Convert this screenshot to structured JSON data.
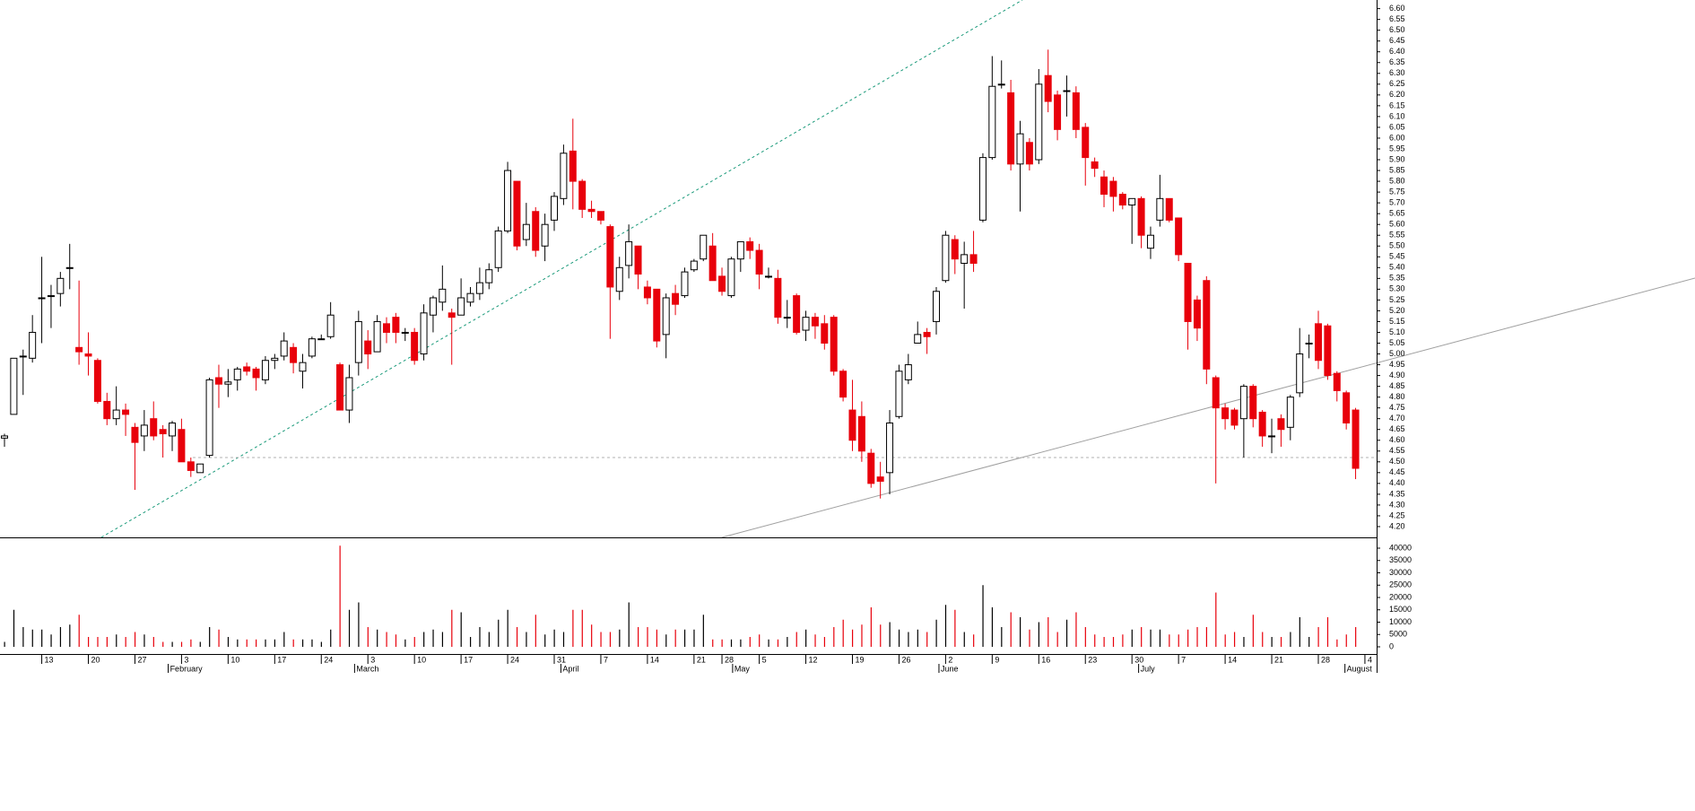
{
  "chart_data": {
    "type": "candlestick",
    "categories": [
      null,
      null,
      null,
      null,
      "13",
      null,
      null,
      null,
      null,
      "20",
      null,
      null,
      null,
      null,
      "27",
      null,
      null,
      null,
      null,
      "3",
      null,
      null,
      null,
      null,
      "10",
      null,
      null,
      null,
      null,
      "17",
      null,
      null,
      null,
      null,
      "24",
      null,
      null,
      null,
      null,
      "3",
      null,
      null,
      null,
      null,
      "10",
      null,
      null,
      null,
      null,
      "17",
      null,
      null,
      null,
      null,
      "24",
      null,
      null,
      null,
      null,
      "31",
      null,
      null,
      null,
      null,
      "7",
      null,
      null,
      null,
      null,
      "14",
      null,
      null,
      null,
      null,
      "21",
      null,
      null,
      "28",
      null,
      null,
      null,
      "5",
      null,
      null,
      null,
      null,
      "12",
      null,
      null,
      null,
      null,
      "19",
      null,
      null,
      null,
      null,
      "26",
      null,
      null,
      null,
      null,
      "2",
      null,
      null,
      null,
      null,
      "9",
      null,
      null,
      null,
      null,
      "16",
      null,
      null,
      null,
      null,
      "23",
      null,
      null,
      null,
      null,
      "30",
      null,
      null,
      null,
      null,
      "7",
      null,
      null,
      null,
      null,
      "14",
      null,
      null,
      null,
      null,
      "21",
      null,
      null,
      null,
      null,
      "28",
      null,
      null,
      null,
      null,
      "4"
    ],
    "months": [
      "February",
      "March",
      "April",
      "May",
      "June",
      "July",
      "August"
    ],
    "open": [
      4.61,
      4.72,
      4.99,
      4.98,
      5.26,
      5.27,
      5.28,
      5.4,
      5.03,
      5.0,
      4.97,
      4.78,
      4.7,
      4.74,
      4.66,
      4.62,
      4.7,
      4.65,
      4.62,
      4.65,
      4.5,
      4.45,
      4.53,
      4.89,
      4.86,
      4.88,
      4.94,
      4.93,
      4.88,
      4.97,
      4.99,
      5.03,
      4.92,
      4.99,
      5.07,
      5.08,
      4.95,
      4.74,
      4.96,
      5.06,
      5.01,
      5.14,
      5.17,
      5.1,
      5.1,
      5.0,
      5.18,
      5.24,
      5.19,
      5.18,
      5.24,
      5.28,
      5.33,
      5.4,
      5.57,
      5.8,
      5.53,
      5.66,
      5.5,
      5.62,
      5.72,
      5.94,
      5.8,
      5.67,
      5.66,
      5.59,
      5.29,
      5.41,
      5.5,
      5.31,
      5.3,
      5.09,
      5.28,
      5.27,
      5.39,
      5.44,
      5.5,
      5.36,
      5.27,
      5.44,
      5.52,
      5.48,
      5.36,
      5.35,
      5.17,
      5.27,
      5.11,
      5.17,
      5.14,
      5.17,
      4.92,
      4.74,
      4.71,
      4.54,
      4.43,
      4.45,
      4.71,
      4.88,
      5.05,
      5.1,
      5.15,
      5.34,
      5.53,
      5.42,
      5.46,
      5.62,
      5.91,
      6.25,
      6.21,
      5.88,
      5.98,
      5.9,
      6.29,
      6.2,
      6.22,
      6.21,
      6.05,
      5.89,
      5.82,
      5.8,
      5.74,
      5.69,
      5.72,
      5.49,
      5.62,
      5.72,
      5.63,
      5.42,
      5.25,
      5.34,
      4.89,
      4.75,
      4.74,
      4.7,
      4.85,
      4.73,
      4.62,
      4.7,
      4.66,
      4.82,
      5.05,
      5.14,
      5.13,
      4.91,
      4.82,
      4.74,
      null
    ],
    "high": [
      4.63,
      4.98,
      5.02,
      5.18,
      5.45,
      5.32,
      5.38,
      5.51,
      5.34,
      5.1,
      4.98,
      4.82,
      4.85,
      4.77,
      4.68,
      4.74,
      4.78,
      4.67,
      4.69,
      4.7,
      4.52,
      4.49,
      4.89,
      4.95,
      4.93,
      4.94,
      4.96,
      4.94,
      4.99,
      5.0,
      5.1,
      5.05,
      5.0,
      5.08,
      5.09,
      5.24,
      4.96,
      4.95,
      5.2,
      5.11,
      5.18,
      5.17,
      5.19,
      5.12,
      5.12,
      5.23,
      5.27,
      5.41,
      5.21,
      5.35,
      5.31,
      5.4,
      5.42,
      5.59,
      5.89,
      5.8,
      5.7,
      5.68,
      5.65,
      5.75,
      5.97,
      6.09,
      5.81,
      5.71,
      5.66,
      5.6,
      5.45,
      5.6,
      5.5,
      5.34,
      5.3,
      5.28,
      5.32,
      5.4,
      5.44,
      5.55,
      5.56,
      5.4,
      5.45,
      5.52,
      5.54,
      5.51,
      5.4,
      5.39,
      5.25,
      5.28,
      5.2,
      5.19,
      5.18,
      5.18,
      4.93,
      4.88,
      4.78,
      4.56,
      4.5,
      4.74,
      4.95,
      5.0,
      5.15,
      5.12,
      5.31,
      5.57,
      5.55,
      5.52,
      5.57,
      5.93,
      6.38,
      6.36,
      6.27,
      6.08,
      6.0,
      6.32,
      6.41,
      6.22,
      6.29,
      6.24,
      6.07,
      5.91,
      5.85,
      5.82,
      5.75,
      5.72,
      5.73,
      5.59,
      5.83,
      5.72,
      5.63,
      5.42,
      5.27,
      5.36,
      4.9,
      4.77,
      4.75,
      4.86,
      4.86,
      4.74,
      4.7,
      4.72,
      4.81,
      5.12,
      5.09,
      5.2,
      5.14,
      4.92,
      4.83,
      4.75,
      null
    ],
    "low": [
      4.57,
      4.72,
      4.81,
      4.96,
      5.05,
      5.12,
      5.22,
      5.3,
      4.95,
      4.9,
      4.77,
      4.67,
      4.67,
      4.62,
      4.37,
      4.55,
      4.6,
      4.52,
      4.55,
      4.5,
      4.43,
      4.45,
      4.52,
      4.75,
      4.8,
      4.83,
      4.9,
      4.83,
      4.86,
      4.93,
      4.97,
      4.91,
      4.84,
      4.98,
      5.07,
      5.07,
      4.74,
      4.68,
      4.9,
      4.93,
      5.01,
      5.05,
      5.05,
      5.06,
      4.95,
      4.97,
      5.1,
      5.2,
      4.95,
      5.18,
      5.22,
      5.25,
      5.3,
      5.38,
      5.56,
      5.48,
      5.5,
      5.45,
      5.43,
      5.57,
      5.69,
      5.67,
      5.63,
      5.63,
      5.6,
      5.07,
      5.25,
      5.35,
      5.3,
      5.23,
      5.03,
      4.98,
      5.18,
      5.26,
      5.38,
      5.43,
      5.34,
      5.27,
      5.26,
      5.38,
      5.44,
      5.3,
      5.35,
      5.14,
      5.12,
      5.09,
      5.06,
      5.07,
      5.02,
      4.9,
      4.78,
      4.55,
      4.5,
      4.38,
      4.33,
      4.35,
      4.7,
      4.86,
      5.05,
      5.0,
      5.09,
      5.33,
      5.37,
      5.21,
      5.38,
      5.61,
      5.9,
      6.23,
      5.85,
      5.66,
      5.85,
      5.88,
      6.12,
      5.99,
      6.1,
      6.0,
      5.78,
      5.82,
      5.68,
      5.66,
      5.67,
      5.51,
      5.49,
      5.44,
      5.59,
      5.61,
      5.43,
      5.02,
      5.06,
      4.86,
      4.4,
      4.65,
      4.65,
      4.52,
      4.66,
      4.57,
      4.54,
      4.57,
      4.6,
      4.8,
      4.98,
      4.93,
      4.88,
      4.78,
      4.65,
      4.42,
      null
    ],
    "close": [
      4.62,
      4.98,
      4.99,
      5.1,
      5.26,
      5.27,
      5.35,
      5.4,
      5.01,
      4.99,
      4.78,
      4.7,
      4.74,
      4.72,
      4.59,
      4.67,
      4.62,
      4.63,
      4.68,
      4.5,
      4.46,
      4.49,
      4.88,
      4.86,
      4.87,
      4.93,
      4.92,
      4.89,
      4.97,
      4.98,
      5.06,
      4.96,
      4.96,
      5.07,
      5.07,
      5.18,
      4.74,
      4.89,
      5.15,
      5.0,
      5.15,
      5.1,
      5.1,
      5.1,
      4.97,
      5.19,
      5.26,
      5.3,
      5.17,
      5.26,
      5.28,
      5.33,
      5.39,
      5.57,
      5.85,
      5.5,
      5.6,
      5.48,
      5.6,
      5.73,
      5.93,
      5.8,
      5.67,
      5.66,
      5.62,
      5.31,
      5.4,
      5.52,
      5.37,
      5.26,
      5.06,
      5.26,
      5.23,
      5.38,
      5.43,
      5.55,
      5.34,
      5.29,
      5.44,
      5.52,
      5.48,
      5.37,
      5.36,
      5.17,
      5.17,
      5.1,
      5.17,
      5.13,
      5.05,
      4.92,
      4.8,
      4.6,
      4.55,
      4.4,
      4.41,
      4.68,
      4.92,
      4.95,
      5.09,
      5.08,
      5.29,
      5.55,
      5.44,
      5.46,
      5.42,
      5.91,
      6.24,
      6.25,
      5.88,
      6.02,
      5.88,
      6.25,
      6.17,
      6.04,
      6.22,
      6.04,
      5.91,
      5.86,
      5.74,
      5.73,
      5.69,
      5.72,
      5.55,
      5.55,
      5.72,
      5.62,
      5.46,
      5.15,
      5.12,
      4.93,
      4.75,
      4.7,
      4.67,
      4.85,
      4.7,
      4.62,
      4.62,
      4.65,
      4.8,
      5.0,
      5.05,
      4.97,
      4.9,
      4.83,
      4.68,
      4.47,
      null
    ],
    "volume": [
      2000,
      15000,
      8000,
      7000,
      7000,
      5000,
      8000,
      9000,
      13000,
      4000,
      4000,
      4000,
      5000,
      4000,
      6000,
      5000,
      4000,
      2000,
      2000,
      2000,
      3000,
      2000,
      8000,
      7000,
      4000,
      3000,
      3000,
      3000,
      3000,
      3000,
      6000,
      3000,
      3000,
      3000,
      2000,
      7000,
      41000,
      15000,
      18000,
      8000,
      7000,
      6000,
      5000,
      3000,
      4000,
      6000,
      7000,
      6000,
      15000,
      14000,
      4000,
      8000,
      6000,
      11000,
      15000,
      8000,
      6000,
      13000,
      5000,
      7000,
      6000,
      15000,
      15000,
      9000,
      6000,
      6000,
      7000,
      18000,
      8000,
      8000,
      7000,
      5000,
      7000,
      7000,
      7000,
      13000,
      3000,
      3000,
      3000,
      3000,
      4000,
      5000,
      3000,
      3000,
      4000,
      6000,
      7000,
      5000,
      4000,
      8000,
      11000,
      7000,
      9000,
      16000,
      9000,
      10000,
      7000,
      6000,
      7000,
      6000,
      11000,
      17000,
      15000,
      6000,
      5000,
      25000,
      16000,
      8000,
      14000,
      12000,
      7000,
      10000,
      12000,
      6000,
      11000,
      14000,
      8000,
      5000,
      4000,
      4000,
      5000,
      7000,
      8000,
      7000,
      7000,
      5000,
      5000,
      7000,
      8000,
      8000,
      22000,
      5000,
      6000,
      4000,
      13000,
      6000,
      4000,
      4000,
      6000,
      12000,
      4000,
      8000,
      12000,
      3000,
      5000,
      8000,
      null
    ],
    "up_color": "#ffffff",
    "down_color": "#e8000b",
    "volume_up_color": "#000000",
    "volume_down_color": "#e8000b",
    "ylim": [
      4.15,
      6.64
    ],
    "yticks": [
      {
        "value": 4.2,
        "label": "4.20"
      },
      4.25,
      {
        "value": 4.3,
        "label": "4.30"
      },
      4.35,
      {
        "value": 4.4,
        "label": "4.40"
      },
      4.45,
      {
        "value": 4.5,
        "label": "4.50"
      },
      4.55,
      {
        "value": 4.6,
        "label": "4.60"
      },
      4.65,
      {
        "value": 4.7,
        "label": "4.70"
      },
      4.75,
      {
        "value": 4.8,
        "label": "4.80"
      },
      4.85,
      {
        "value": 4.9,
        "label": "4.90"
      },
      4.95,
      {
        "value": 5,
        "label": "5.00"
      },
      5.05,
      {
        "value": 5.1,
        "label": "5.10"
      },
      5.15,
      {
        "value": 5.2,
        "label": "5.20"
      },
      5.25,
      {
        "value": 5.3,
        "label": "5.30"
      },
      5.35,
      {
        "value": 5.4,
        "label": "5.40"
      },
      5.45,
      {
        "value": 5.5,
        "label": "5.50"
      },
      5.55,
      {
        "value": 5.6,
        "label": "5.60"
      },
      5.65,
      {
        "value": 5.7,
        "label": "5.70"
      },
      5.75,
      {
        "value": 5.8,
        "label": "5.80"
      },
      5.85,
      {
        "value": 5.9,
        "label": "5.90"
      },
      5.95,
      {
        "value": 6,
        "label": "6.00"
      },
      6.05,
      {
        "value": 6.1,
        "label": "6.10"
      },
      6.15,
      {
        "value": 6.2,
        "label": "6.20"
      },
      6.25,
      {
        "value": 6.3,
        "label": "6.30"
      },
      6.35,
      {
        "value": 6.4,
        "label": "6.40"
      },
      6.45,
      {
        "value": 6.5,
        "label": "6.50"
      },
      6.55,
      {
        "value": 6.6,
        "label": "6.60"
      }
    ],
    "volume_ylim": [
      0,
      44000
    ],
    "volume_yticks": [
      0,
      5000,
      10000,
      15000,
      20000,
      25000,
      30000,
      35000,
      40000
    ]
  }
}
